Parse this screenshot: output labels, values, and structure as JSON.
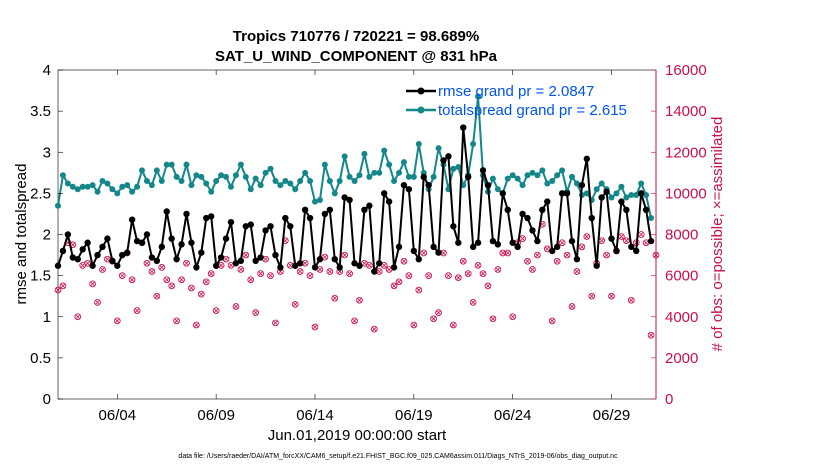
{
  "colors": {
    "rmse": "#000000",
    "spread": "#14878a",
    "obs": "#d0104f",
    "legend_text": "#0055ee",
    "axis": "#000000",
    "right_axis": "#c8104f"
  },
  "chart_data": {
    "type": "line",
    "title": "Tropics 710776 / 720221 = 98.689%",
    "subtitle": "SAT_U_WIND_COMPONENT @ 831 hPa",
    "xlabel": "Jun.01,2019 00:00:00 start",
    "ylabel": "rmse and totalspread",
    "y2label": "# of obs: o=possible; ×=assimilated",
    "footnote": "data file: /Users/raeder/DAI/ATM_forcXX/CAM6_setup/f.e21.FHIST_BGC.f09_025.CAM6assim.011/Diags_NTrS_2019-06/obs_diag_output.nc",
    "xlim": [
      1,
      31.25
    ],
    "ylim": [
      0,
      4
    ],
    "y2lim": [
      0,
      16000
    ],
    "xticks": [
      4,
      9,
      14,
      19,
      24,
      29
    ],
    "xtick_labels": [
      "06/04",
      "06/09",
      "06/14",
      "06/19",
      "06/24",
      "06/29"
    ],
    "yticks": [
      0,
      0.5,
      1,
      1.5,
      2,
      2.5,
      3,
      3.5,
      4
    ],
    "ytick_labels": [
      "0",
      "0.5",
      "1",
      "1.5",
      "2",
      "2.5",
      "3",
      "3.5",
      "4"
    ],
    "y2ticks": [
      0,
      2000,
      4000,
      6000,
      8000,
      10000,
      12000,
      14000,
      16000
    ],
    "y2tick_labels": [
      "0",
      "2000",
      "4000",
      "6000",
      "8000",
      "10000",
      "12000",
      "14000",
      "16000"
    ],
    "legend_location": "top-right",
    "series": [
      {
        "name": "rmse grand pr = 2.0847",
        "x": [
          1.0,
          1.25,
          1.5,
          1.75,
          2.0,
          2.25,
          2.5,
          2.75,
          3.0,
          3.25,
          3.5,
          3.75,
          4.0,
          4.25,
          4.5,
          4.75,
          5.0,
          5.25,
          5.5,
          5.75,
          6.0,
          6.25,
          6.5,
          6.75,
          7.0,
          7.25,
          7.5,
          7.75,
          8.0,
          8.25,
          8.5,
          8.75,
          9.0,
          9.25,
          9.5,
          9.75,
          10.0,
          10.25,
          10.5,
          10.75,
          11.0,
          11.25,
          11.5,
          11.75,
          12.0,
          12.25,
          12.5,
          12.75,
          13.0,
          13.25,
          13.5,
          13.75,
          14.0,
          14.25,
          14.5,
          14.75,
          15.0,
          15.25,
          15.5,
          15.75,
          16.0,
          16.25,
          16.5,
          16.75,
          17.0,
          17.25,
          17.5,
          17.75,
          18.0,
          18.25,
          18.5,
          18.75,
          19.0,
          19.25,
          19.5,
          19.75,
          20.0,
          20.25,
          20.5,
          20.75,
          21.0,
          21.25,
          21.5,
          21.75,
          22.0,
          22.25,
          22.5,
          22.75,
          23.0,
          23.25,
          23.5,
          23.75,
          24.0,
          24.25,
          24.5,
          24.75,
          25.0,
          25.25,
          25.5,
          25.75,
          26.0,
          26.25,
          26.5,
          26.75,
          27.0,
          27.25,
          27.5,
          27.75,
          28.0,
          28.25,
          28.5,
          28.75,
          29.0,
          29.25,
          29.5,
          29.75,
          30.0,
          30.25,
          30.5,
          30.75,
          31.0
        ],
        "values": [
          1.62,
          1.8,
          2.0,
          1.72,
          1.7,
          1.82,
          1.9,
          1.62,
          1.75,
          1.85,
          1.95,
          1.68,
          1.62,
          1.75,
          1.78,
          2.18,
          1.92,
          1.9,
          2.0,
          1.72,
          1.68,
          1.85,
          2.28,
          1.95,
          1.7,
          1.88,
          2.25,
          1.9,
          1.6,
          1.78,
          2.2,
          2.22,
          1.62,
          1.72,
          1.95,
          2.15,
          1.65,
          1.68,
          2.1,
          2.12,
          1.68,
          1.72,
          2.05,
          2.1,
          1.75,
          1.6,
          2.2,
          2.1,
          1.62,
          1.65,
          2.3,
          2.2,
          1.6,
          1.7,
          2.25,
          2.3,
          1.7,
          1.6,
          2.45,
          2.42,
          1.65,
          1.62,
          2.3,
          2.35,
          1.55,
          1.65,
          2.5,
          2.4,
          1.6,
          1.85,
          2.6,
          2.55,
          1.8,
          1.7,
          2.7,
          2.6,
          1.85,
          1.78,
          2.9,
          2.95,
          2.1,
          1.9,
          3.3,
          2.7,
          1.85,
          1.9,
          2.78,
          2.6,
          1.92,
          1.88,
          2.5,
          2.3,
          1.9,
          1.85,
          2.25,
          2.2,
          2.05,
          1.92,
          2.3,
          2.4,
          1.8,
          1.85,
          2.5,
          2.5,
          1.92,
          1.7,
          2.6,
          2.92,
          2.2,
          1.62,
          2.45,
          2.52,
          1.95,
          1.8,
          2.4,
          2.3,
          1.85,
          1.8,
          2.5,
          2.3,
          1.92
        ]
      },
      {
        "name": "totalspread grand pr = 2.615",
        "x": [
          1.0,
          1.25,
          1.5,
          1.75,
          2.0,
          2.25,
          2.5,
          2.75,
          3.0,
          3.25,
          3.5,
          3.75,
          4.0,
          4.25,
          4.5,
          4.75,
          5.0,
          5.25,
          5.5,
          5.75,
          6.0,
          6.25,
          6.5,
          6.75,
          7.0,
          7.25,
          7.5,
          7.75,
          8.0,
          8.25,
          8.5,
          8.75,
          9.0,
          9.25,
          9.5,
          9.75,
          10.0,
          10.25,
          10.5,
          10.75,
          11.0,
          11.25,
          11.5,
          11.75,
          12.0,
          12.25,
          12.5,
          12.75,
          13.0,
          13.25,
          13.5,
          13.75,
          14.0,
          14.25,
          14.5,
          14.75,
          15.0,
          15.25,
          15.5,
          15.75,
          16.0,
          16.25,
          16.5,
          16.75,
          17.0,
          17.25,
          17.5,
          17.75,
          18.0,
          18.25,
          18.5,
          18.75,
          19.0,
          19.25,
          19.5,
          19.75,
          20.0,
          20.25,
          20.5,
          20.75,
          21.0,
          21.25,
          21.5,
          21.75,
          22.0,
          22.25,
          22.5,
          22.75,
          23.0,
          23.25,
          23.5,
          23.75,
          24.0,
          24.25,
          24.5,
          24.75,
          25.0,
          25.25,
          25.5,
          25.75,
          26.0,
          26.25,
          26.5,
          26.75,
          27.0,
          27.25,
          27.5,
          27.75,
          28.0,
          28.25,
          28.5,
          28.75,
          29.0,
          29.25,
          29.5,
          29.75,
          30.0,
          30.25,
          30.5,
          30.75,
          31.0
        ],
        "values": [
          2.35,
          2.72,
          2.62,
          2.58,
          2.55,
          2.58,
          2.58,
          2.6,
          2.52,
          2.65,
          2.62,
          2.55,
          2.5,
          2.58,
          2.6,
          2.52,
          2.58,
          2.78,
          2.65,
          2.6,
          2.78,
          2.65,
          2.85,
          2.85,
          2.7,
          2.65,
          2.85,
          2.6,
          2.72,
          2.7,
          2.62,
          2.52,
          2.65,
          2.72,
          2.7,
          2.58,
          2.72,
          2.85,
          2.7,
          2.55,
          2.68,
          2.6,
          2.75,
          2.8,
          2.65,
          2.6,
          2.65,
          2.62,
          2.55,
          2.65,
          2.75,
          2.65,
          2.4,
          2.42,
          2.85,
          2.65,
          2.5,
          2.65,
          2.95,
          2.7,
          2.65,
          2.72,
          2.98,
          2.7,
          2.75,
          2.75,
          3.02,
          2.85,
          2.65,
          2.75,
          2.88,
          2.7,
          2.7,
          3.1,
          2.75,
          2.55,
          2.7,
          3.05,
          2.85,
          2.55,
          2.8,
          2.82,
          2.6,
          2.72,
          3.1,
          3.68,
          2.72,
          2.52,
          2.68,
          2.55,
          2.5,
          2.68,
          2.72,
          2.68,
          2.6,
          2.72,
          2.75,
          2.72,
          2.78,
          2.62,
          2.65,
          2.72,
          2.78,
          2.52,
          2.7,
          2.62,
          2.48,
          2.5,
          2.42,
          2.55,
          2.62,
          2.55,
          2.45,
          2.5,
          2.58,
          2.45,
          2.48,
          2.48,
          2.62,
          2.48,
          2.2
        ]
      },
      {
        "name": "# of obs possible/assimilated",
        "axis": "right",
        "x": [
          1.0,
          1.25,
          1.5,
          1.75,
          2.0,
          2.25,
          2.5,
          2.75,
          3.0,
          3.25,
          3.5,
          3.75,
          4.0,
          4.25,
          4.5,
          4.75,
          5.0,
          5.25,
          5.5,
          5.75,
          6.0,
          6.25,
          6.5,
          6.75,
          7.0,
          7.25,
          7.5,
          7.75,
          8.0,
          8.25,
          8.5,
          8.75,
          9.0,
          9.25,
          9.5,
          9.75,
          10.0,
          10.25,
          10.5,
          10.75,
          11.0,
          11.25,
          11.5,
          11.75,
          12.0,
          12.25,
          12.5,
          12.75,
          13.0,
          13.25,
          13.5,
          13.75,
          14.0,
          14.25,
          14.5,
          14.75,
          15.0,
          15.25,
          15.5,
          15.75,
          16.0,
          16.25,
          16.5,
          16.75,
          17.0,
          17.25,
          17.5,
          17.75,
          18.0,
          18.25,
          18.5,
          18.75,
          19.0,
          19.25,
          19.5,
          19.75,
          20.0,
          20.25,
          20.5,
          20.75,
          21.0,
          21.25,
          21.5,
          21.75,
          22.0,
          22.25,
          22.5,
          22.75,
          23.0,
          23.25,
          23.5,
          23.75,
          24.0,
          24.25,
          24.5,
          24.75,
          25.0,
          25.25,
          25.5,
          25.75,
          26.0,
          26.25,
          26.5,
          26.75,
          27.0,
          27.25,
          27.5,
          27.75,
          28.0,
          28.25,
          28.5,
          28.75,
          29.0,
          29.25,
          29.5,
          29.75,
          30.0,
          30.25,
          30.5,
          30.75,
          31.0,
          31.25
        ],
        "values": [
          5300,
          5500,
          7600,
          7500,
          4000,
          6500,
          6600,
          5600,
          4700,
          6300,
          6800,
          6700,
          3800,
          6000,
          7100,
          5800,
          4300,
          7600,
          6600,
          6200,
          5000,
          6400,
          5800,
          5500,
          3800,
          5800,
          6600,
          5400,
          3600,
          5100,
          5700,
          6100,
          4300,
          6500,
          6800,
          6500,
          4500,
          6300,
          7000,
          5800,
          4200,
          6100,
          6800,
          6000,
          3700,
          6200,
          7700,
          6500,
          4600,
          6200,
          6600,
          6000,
          3500,
          6300,
          6900,
          6200,
          4900,
          6200,
          7000,
          6100,
          3800,
          4800,
          6600,
          6500,
          3400,
          6200,
          6500,
          6300,
          5500,
          5700,
          6700,
          6000,
          3600,
          5300,
          7100,
          6000,
          3900,
          4200,
          7100,
          6000,
          3600,
          5900,
          6700,
          6100,
          4700,
          6500,
          6100,
          5500,
          3900,
          6300,
          7100,
          7100,
          4000,
          7600,
          7800,
          6700,
          6300,
          7000,
          8500,
          7300,
          3800,
          6700,
          7600,
          7000,
          4500,
          6200,
          7400,
          7900,
          5000,
          6600,
          7700,
          7000,
          5000,
          7200,
          7900,
          7700,
          4800,
          7600,
          8000,
          7600,
          3100,
          7000
        ]
      }
    ]
  }
}
